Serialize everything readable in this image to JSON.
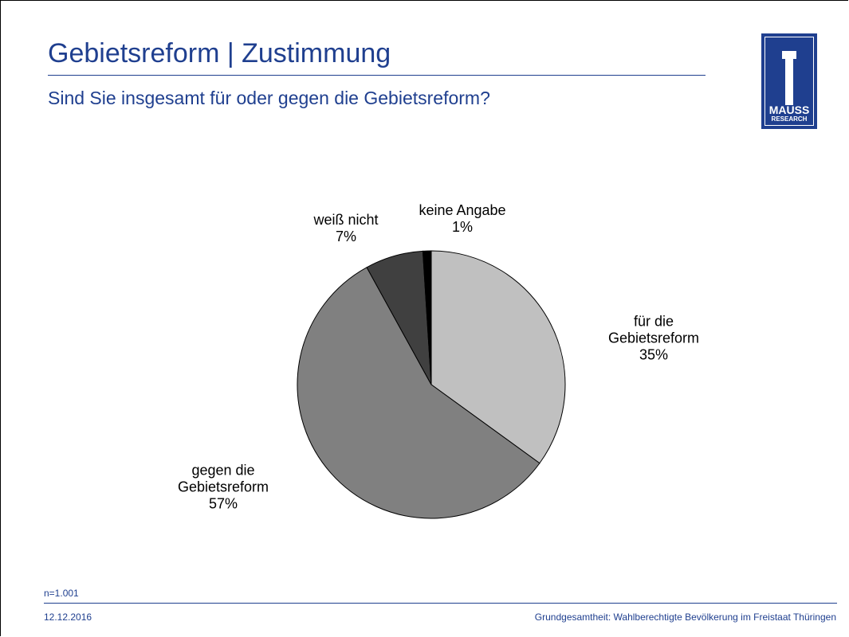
{
  "header": {
    "title": "Gebietsreform | Zustimmung",
    "subtitle": "Sind Sie insgesamt für oder gegen die Gebietsreform?"
  },
  "logo": {
    "line1": "MAUSS",
    "line2": "RESEARCH"
  },
  "chart_data": {
    "type": "pie",
    "categories": [
      "für die Gebietsreform",
      "gegen die Gebietsreform",
      "weiß nicht",
      "keine Angabe"
    ],
    "values": [
      35,
      57,
      7,
      1
    ],
    "value_labels": [
      "35%",
      "57%",
      "7%",
      "1%"
    ],
    "colors": [
      "#c0c0c0",
      "#808080",
      "#404040",
      "#000000"
    ]
  },
  "footer": {
    "note": "n=1.001",
    "date": "12.12.2016",
    "source": "Grundgesamtheit: Wahlberechtigte Bevölkerung im Freistaat Thüringen"
  }
}
